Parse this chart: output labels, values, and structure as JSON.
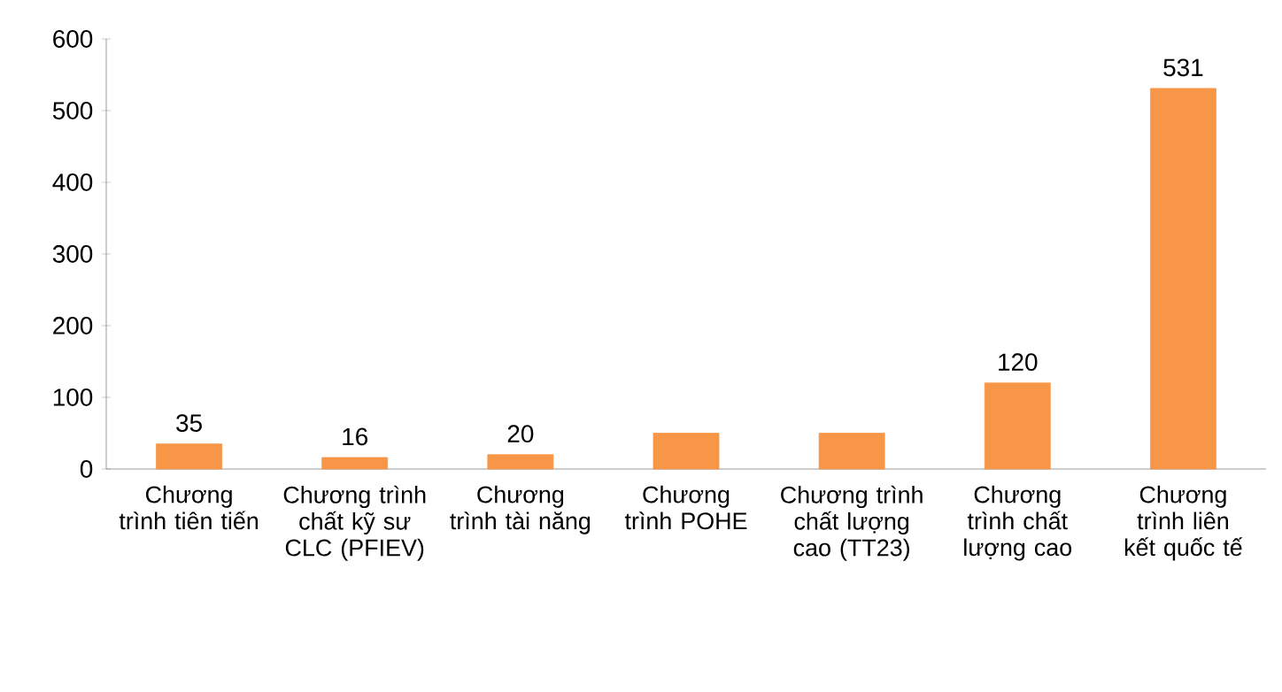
{
  "chart_data": {
    "type": "bar",
    "categories": [
      "Chương trình tiên tiến",
      "Chương trình chất kỹ sư CLC (PFIEV)",
      "Chương trình tài năng",
      "Chương trình POHE",
      "Chương trình chất lượng cao (TT23)",
      "Chương trình chất lượng cao",
      "Chương trình liên kết quốc tế"
    ],
    "values": [
      35,
      16,
      20,
      50,
      50,
      120,
      531
    ],
    "value_labels": [
      "35",
      "16",
      "20",
      null,
      null,
      "120",
      "531"
    ],
    "color": "#f79646",
    "ylim": [
      0,
      600
    ],
    "yticks": [
      0,
      100,
      200,
      300,
      400,
      500,
      600
    ]
  }
}
